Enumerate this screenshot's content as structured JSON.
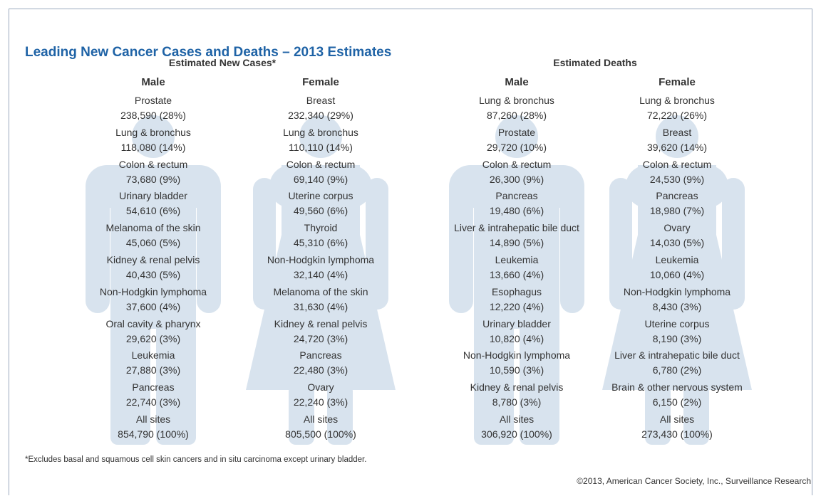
{
  "title": "Leading New Cancer Cases and Deaths – 2013 Estimates",
  "groups": [
    {
      "title": "Estimated New Cases*",
      "columns": [
        {
          "header": "Male",
          "items": [
            {
              "name": "Prostate",
              "value": "238,590 (28%)"
            },
            {
              "name": "Lung & bronchus",
              "value": "118,080 (14%)"
            },
            {
              "name": "Colon & rectum",
              "value": "73,680 (9%)"
            },
            {
              "name": "Urinary bladder",
              "value": "54,610 (6%)"
            },
            {
              "name": "Melanoma of the skin",
              "value": "45,060 (5%)"
            },
            {
              "name": "Kidney & renal pelvis",
              "value": "40,430 (5%)"
            },
            {
              "name": "Non-Hodgkin lymphoma",
              "value": "37,600 (4%)"
            },
            {
              "name": "Oral cavity & pharynx",
              "value": "29,620 (3%)"
            },
            {
              "name": "Leukemia",
              "value": "27,880 (3%)"
            },
            {
              "name": "Pancreas",
              "value": "22,740 (3%)"
            },
            {
              "name": "All sites",
              "value": "854,790 (100%)"
            }
          ]
        },
        {
          "header": "Female",
          "items": [
            {
              "name": "Breast",
              "value": "232,340 (29%)"
            },
            {
              "name": "Lung & bronchus",
              "value": "110,110 (14%)"
            },
            {
              "name": "Colon & rectum",
              "value": "69,140 (9%)"
            },
            {
              "name": "Uterine corpus",
              "value": "49,560 (6%)"
            },
            {
              "name": "Thyroid",
              "value": "45,310 (6%)"
            },
            {
              "name": "Non-Hodgkin lymphoma",
              "value": "32,140 (4%)"
            },
            {
              "name": "Melanoma of the skin",
              "value": "31,630 (4%)"
            },
            {
              "name": "Kidney & renal pelvis",
              "value": "24,720 (3%)"
            },
            {
              "name": "Pancreas",
              "value": "22,480 (3%)"
            },
            {
              "name": "Ovary",
              "value": "22,240 (3%)"
            },
            {
              "name": "All sites",
              "value": "805,500 (100%)"
            }
          ]
        }
      ]
    },
    {
      "title": "Estimated Deaths",
      "columns": [
        {
          "header": "Male",
          "items": [
            {
              "name": "Lung & bronchus",
              "value": "87,260 (28%)"
            },
            {
              "name": "Prostate",
              "value": "29,720 (10%)"
            },
            {
              "name": "Colon & rectum",
              "value": "26,300 (9%)"
            },
            {
              "name": "Pancreas",
              "value": "19,480 (6%)"
            },
            {
              "name": "Liver & intrahepatic bile duct",
              "value": "14,890 (5%)"
            },
            {
              "name": "Leukemia",
              "value": "13,660 (4%)"
            },
            {
              "name": "Esophagus",
              "value": "12,220 (4%)"
            },
            {
              "name": "Urinary bladder",
              "value": "10,820 (4%)"
            },
            {
              "name": "Non-Hodgkin lymphoma",
              "value": "10,590 (3%)"
            },
            {
              "name": "Kidney & renal pelvis",
              "value": "8,780 (3%)"
            },
            {
              "name": "All sites",
              "value": "306,920 (100%)"
            }
          ]
        },
        {
          "header": "Female",
          "items": [
            {
              "name": "Lung & bronchus",
              "value": "72,220 (26%)"
            },
            {
              "name": "Breast",
              "value": "39,620 (14%)"
            },
            {
              "name": "Colon & rectum",
              "value": "24,530 (9%)"
            },
            {
              "name": "Pancreas",
              "value": "18,980 (7%)"
            },
            {
              "name": "Ovary",
              "value": "14,030 (5%)"
            },
            {
              "name": "Leukemia",
              "value": "10,060 (4%)"
            },
            {
              "name": "Non-Hodgkin lymphoma",
              "value": "8,430 (3%)"
            },
            {
              "name": "Uterine corpus",
              "value": "8,190 (3%)"
            },
            {
              "name": "Liver & intrahepatic bile duct",
              "value": "6,780 (2%)"
            },
            {
              "name": "Brain & other nervous system",
              "value": "6,150 (2%)"
            },
            {
              "name": "All sites",
              "value": "273,430 (100%)"
            }
          ]
        }
      ]
    }
  ],
  "footnote": "*Excludes basal and squamous cell skin cancers and in situ carcinoma except urinary bladder.",
  "copyright": "©2013, American Cancer Society, Inc., Surveillance Research"
}
